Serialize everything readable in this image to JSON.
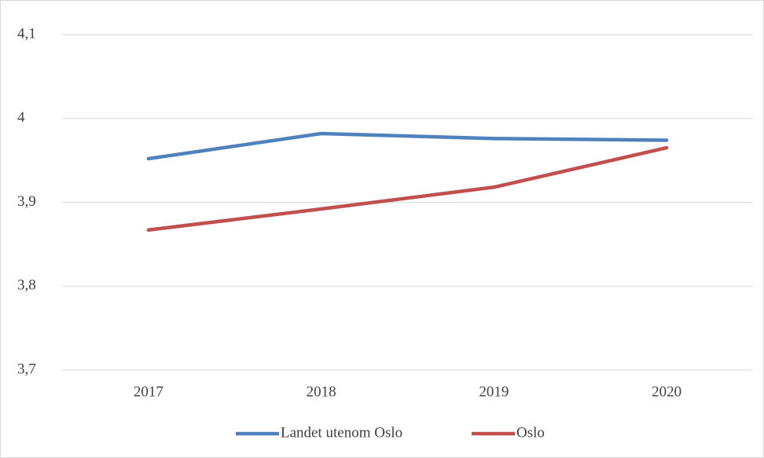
{
  "chart_data": {
    "type": "line",
    "categories": [
      "2017",
      "2018",
      "2019",
      "2020"
    ],
    "series": [
      {
        "name": "Landet utenom Oslo",
        "color": "#4f81bd",
        "values": [
          3.952,
          3.982,
          3.976,
          3.974
        ]
      },
      {
        "name": "Oslo",
        "color": "#c0504d",
        "values": [
          3.867,
          3.892,
          3.918,
          3.965
        ]
      }
    ],
    "ylim": [
      3.7,
      4.1
    ],
    "yticks": [
      {
        "value": 3.7,
        "label": "3,7"
      },
      {
        "value": 3.8,
        "label": "3,8"
      },
      {
        "value": 3.9,
        "label": "3,9"
      },
      4,
      {
        "value": 4.1,
        "label": "4,1"
      }
    ],
    "grid": true,
    "legend": "bottom"
  }
}
